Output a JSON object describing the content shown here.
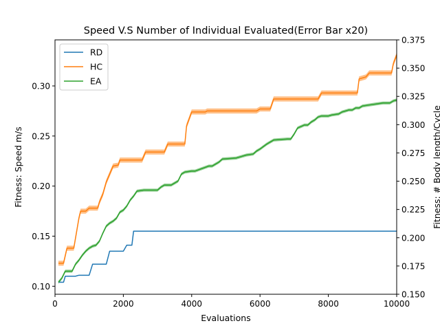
{
  "chart_data": {
    "type": "line",
    "title": "Speed V.S Number of Individual Evaluated(Error Bar x20)",
    "xlabel": "Evaluations",
    "ylabel": "Fitness: Speed m/s",
    "ylabel_right": "Fitness: # Body length/Cycle",
    "xlim": [
      0,
      10000
    ],
    "ylim": [
      0.092,
      0.346
    ],
    "ylim_right": [
      0.15,
      0.375
    ],
    "xticks": [
      "0",
      "2000",
      "4000",
      "6000",
      "8000",
      "10000"
    ],
    "yticks": [
      "0.10",
      "0.15",
      "0.20",
      "0.25",
      "0.30"
    ],
    "yticks_right": [
      "0.150",
      "0.175",
      "0.200",
      "0.225",
      "0.250",
      "0.275",
      "0.300",
      "0.325",
      "0.350",
      "0.375"
    ],
    "grid": false,
    "legend_position": "top-left",
    "series": [
      {
        "name": "RD",
        "color": "#1f77b4",
        "band": 0,
        "x": [
          100,
          250,
          300,
          600,
          700,
          1000,
          1100,
          1500,
          1600,
          2000,
          2100,
          2250,
          2300,
          10000
        ],
        "y": [
          0.104,
          0.104,
          0.11,
          0.11,
          0.111,
          0.111,
          0.122,
          0.122,
          0.135,
          0.135,
          0.141,
          0.141,
          0.155,
          0.155
        ]
      },
      {
        "name": "HC",
        "color": "#ff7f0e",
        "band": 0.0025,
        "x": [
          100,
          250,
          350,
          550,
          650,
          700,
          750,
          900,
          1000,
          1050,
          1250,
          1300,
          1400,
          1500,
          1600,
          1700,
          1850,
          1900,
          2550,
          2650,
          3200,
          3300,
          3800,
          3850,
          4000,
          4400,
          4450,
          5900,
          6000,
          6300,
          6400,
          7700,
          7800,
          8850,
          8900,
          9100,
          9200,
          9850,
          9900,
          10000
        ],
        "y": [
          0.123,
          0.123,
          0.138,
          0.138,
          0.158,
          0.168,
          0.175,
          0.175,
          0.178,
          0.178,
          0.178,
          0.184,
          0.192,
          0.204,
          0.212,
          0.22,
          0.221,
          0.226,
          0.226,
          0.234,
          0.234,
          0.242,
          0.242,
          0.26,
          0.274,
          0.274,
          0.275,
          0.275,
          0.277,
          0.277,
          0.287,
          0.287,
          0.293,
          0.293,
          0.307,
          0.309,
          0.313,
          0.313,
          0.322,
          0.331
        ]
      },
      {
        "name": "EA",
        "color": "#2ca02c",
        "band": 0.0015,
        "x": [
          100,
          200,
          300,
          500,
          600,
          700,
          800,
          900,
          1000,
          1100,
          1200,
          1300,
          1400,
          1500,
          1600,
          1700,
          1800,
          1900,
          2000,
          2100,
          2200,
          2300,
          2400,
          2600,
          3000,
          3100,
          3200,
          3400,
          3500,
          3600,
          3700,
          3800,
          4000,
          4100,
          4500,
          4600,
          4800,
          4900,
          5300,
          5400,
          5600,
          5800,
          5900,
          6000,
          6200,
          6300,
          6400,
          6800,
          6900,
          7000,
          7100,
          7300,
          7400,
          7500,
          7600,
          7700,
          7800,
          8000,
          8100,
          8300,
          8400,
          8600,
          8700,
          8800,
          8900,
          9000,
          9200,
          9400,
          9600,
          9800,
          9900,
          10000
        ],
        "y": [
          0.104,
          0.108,
          0.115,
          0.115,
          0.122,
          0.126,
          0.131,
          0.135,
          0.138,
          0.14,
          0.141,
          0.145,
          0.153,
          0.16,
          0.163,
          0.165,
          0.168,
          0.174,
          0.176,
          0.18,
          0.186,
          0.19,
          0.195,
          0.196,
          0.196,
          0.199,
          0.201,
          0.201,
          0.203,
          0.205,
          0.212,
          0.214,
          0.215,
          0.215,
          0.22,
          0.22,
          0.224,
          0.227,
          0.228,
          0.229,
          0.231,
          0.232,
          0.235,
          0.237,
          0.242,
          0.244,
          0.246,
          0.247,
          0.247,
          0.252,
          0.258,
          0.261,
          0.261,
          0.264,
          0.266,
          0.269,
          0.27,
          0.27,
          0.271,
          0.272,
          0.274,
          0.276,
          0.276,
          0.278,
          0.278,
          0.28,
          0.281,
          0.282,
          0.283,
          0.283,
          0.285,
          0.286
        ]
      }
    ]
  }
}
